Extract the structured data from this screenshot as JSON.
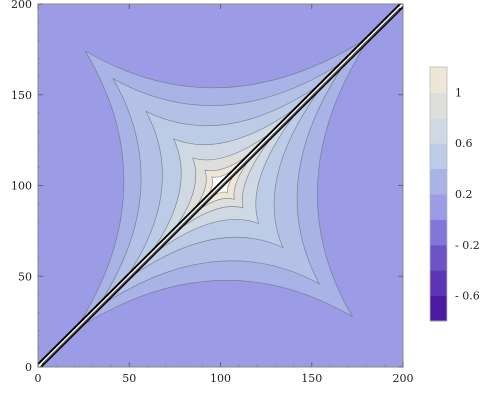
{
  "chart_data": {
    "type": "contour",
    "title": "",
    "xlabel": "",
    "ylabel": "",
    "xlim": [
      0,
      200
    ],
    "ylim": [
      0,
      200
    ],
    "x_ticks": [
      0,
      50,
      100,
      150,
      200
    ],
    "y_ticks": [
      0,
      50,
      100,
      150,
      200
    ],
    "contour_levels": [
      {
        "upper": -0.6,
        "color": "#4a1aa0"
      },
      {
        "upper": -0.4,
        "color": "#5c35b4"
      },
      {
        "upper": -0.2,
        "color": "#6d53c6"
      },
      {
        "upper": 0.0,
        "color": "#8376d9"
      },
      {
        "upper": 0.2,
        "color": "#9b9be6"
      },
      {
        "upper": 0.4,
        "color": "#a9b3e6"
      },
      {
        "upper": 0.6,
        "color": "#bccce6"
      },
      {
        "upper": 0.8,
        "color": "#cfd9e3"
      },
      {
        "upper": 1.0,
        "color": "#dedfdc"
      },
      {
        "upper": 1.2,
        "color": "#efe7d5"
      }
    ],
    "legend": {
      "placement": "right",
      "labels": [
        "1",
        "0.6",
        "0.2",
        "- 0.2",
        "- 0.6"
      ]
    },
    "diagonal_feature": {
      "from": [
        0,
        0
      ],
      "to": [
        200,
        200
      ],
      "color": "#000000"
    },
    "background_color": "#9b9be6",
    "inner_color": "#ffffff"
  }
}
